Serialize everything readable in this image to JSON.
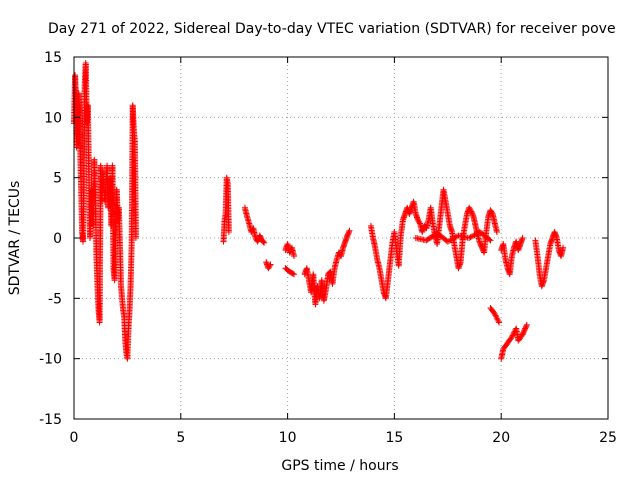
{
  "chart_data": {
    "type": "scatter",
    "title": "Day 271 of 2022, Sidereal Day-to-day VTEC variation (SDTVAR) for receiver pove",
    "xlabel": "GPS time / hours",
    "ylabel": "SDTVAR / TECUs",
    "xlim": [
      0,
      25
    ],
    "ylim": [
      -15,
      15
    ],
    "x_ticks": [
      "0",
      "5",
      "10",
      "15",
      "20",
      "25"
    ],
    "y_ticks": [
      "-15",
      "-10",
      "-5",
      "0",
      "5",
      "10",
      "15"
    ],
    "grid": true,
    "marker": "+",
    "colors": {
      "series": "#ff0000",
      "grid": "#a0a0a0",
      "axes": "#000000"
    },
    "series": [
      {
        "name": "SDTVAR",
        "segments": [
          [
            [
              0.0,
              9.5
            ],
            [
              0.05,
              13.5
            ],
            [
              0.1,
              11.5
            ],
            [
              0.12,
              7.5
            ],
            [
              0.18,
              9.0
            ],
            [
              0.22,
              12.0
            ],
            [
              0.28,
              10.0
            ],
            [
              0.3,
              6.5
            ],
            [
              0.35,
              3.0
            ],
            [
              0.38,
              0.5
            ],
            [
              0.42,
              -0.3
            ],
            [
              0.45,
              3.0
            ],
            [
              0.48,
              8.5
            ],
            [
              0.5,
              12.5
            ],
            [
              0.55,
              14.5
            ],
            [
              0.6,
              9.5
            ],
            [
              0.65,
              11.0
            ],
            [
              0.7,
              5.0
            ],
            [
              0.75,
              0.0
            ],
            [
              0.8,
              2.5
            ],
            [
              0.85,
              4.0
            ],
            [
              0.9,
              1.0
            ],
            [
              0.95,
              6.5
            ],
            [
              1.0,
              3.5
            ],
            [
              1.05,
              -1.5
            ],
            [
              1.1,
              -4.0
            ],
            [
              1.15,
              -6.0
            ],
            [
              1.2,
              -7.0
            ],
            [
              1.25,
              6.0
            ],
            [
              1.3,
              3.0
            ],
            [
              1.35,
              5.5
            ],
            [
              1.45,
              3.0
            ],
            [
              1.55,
              6.0
            ],
            [
              1.6,
              2.5
            ],
            [
              1.7,
              5.0
            ],
            [
              1.75,
              1.0
            ],
            [
              1.8,
              6.0
            ],
            [
              1.85,
              -2.5
            ],
            [
              1.9,
              -3.5
            ],
            [
              2.0,
              4.0
            ],
            [
              2.05,
              1.5
            ],
            [
              2.1,
              2.5
            ],
            [
              2.15,
              -0.5
            ],
            [
              2.2,
              -4.0
            ],
            [
              2.25,
              -5.0
            ],
            [
              2.3,
              -6.0
            ],
            [
              2.35,
              -6.5
            ],
            [
              2.4,
              -8.5
            ],
            [
              2.45,
              -9.5
            ],
            [
              2.5,
              -10.0
            ],
            [
              2.55,
              -7.5
            ],
            [
              2.6,
              -6.0
            ],
            [
              2.65,
              -4.0
            ],
            [
              2.7,
              -0.5
            ],
            [
              2.75,
              11.0
            ],
            [
              2.8,
              9.0
            ],
            [
              2.85,
              8.0
            ],
            [
              2.9,
              0.0
            ]
          ],
          [
            [
              7.0,
              -0.3
            ],
            [
              7.05,
              1.5
            ],
            [
              7.1,
              2.0
            ],
            [
              7.15,
              5.0
            ],
            [
              7.2,
              4.5
            ],
            [
              7.25,
              0.5
            ]
          ],
          [
            [
              8.0,
              2.5
            ],
            [
              8.1,
              1.8
            ],
            [
              8.2,
              1.2
            ],
            [
              8.3,
              0.5
            ],
            [
              8.4,
              0.8
            ],
            [
              8.5,
              0.0
            ],
            [
              8.6,
              -0.3
            ],
            [
              8.7,
              0.2
            ],
            [
              8.8,
              -0.2
            ],
            [
              8.9,
              -0.4
            ]
          ],
          [
            [
              9.0,
              -2.0
            ],
            [
              9.1,
              -2.5
            ],
            [
              9.2,
              -2.2
            ]
          ],
          [
            [
              9.9,
              -1.0
            ],
            [
              10.0,
              -0.5
            ],
            [
              10.1,
              -1.2
            ],
            [
              10.2,
              -0.8
            ],
            [
              10.3,
              -1.5
            ]
          ],
          [
            [
              9.9,
              -2.5
            ],
            [
              10.1,
              -2.8
            ],
            [
              10.3,
              -3.0
            ]
          ],
          [
            [
              10.8,
              -3.0
            ],
            [
              10.9,
              -2.5
            ],
            [
              11.0,
              -3.5
            ],
            [
              11.1,
              -4.5
            ],
            [
              11.2,
              -3.0
            ],
            [
              11.3,
              -5.5
            ],
            [
              11.4,
              -4.0
            ],
            [
              11.5,
              -5.0
            ],
            [
              11.6,
              -3.5
            ],
            [
              11.7,
              -5.2
            ],
            [
              11.8,
              -4.2
            ],
            [
              11.9,
              -3.0
            ],
            [
              12.0,
              -2.8
            ],
            [
              12.1,
              -3.8
            ],
            [
              12.2,
              -2.5
            ],
            [
              12.3,
              -1.8
            ],
            [
              12.4,
              -1.2
            ],
            [
              12.5,
              -1.5
            ],
            [
              12.6,
              -0.8
            ],
            [
              12.7,
              -0.3
            ],
            [
              12.8,
              0.2
            ],
            [
              12.9,
              0.6
            ]
          ],
          [
            [
              13.9,
              1.0
            ],
            [
              14.0,
              0.0
            ],
            [
              14.1,
              -0.8
            ],
            [
              14.2,
              -1.8
            ],
            [
              14.3,
              -2.5
            ],
            [
              14.4,
              -3.5
            ],
            [
              14.5,
              -4.5
            ],
            [
              14.6,
              -5.0
            ],
            [
              14.7,
              -3.5
            ],
            [
              14.8,
              -2.0
            ],
            [
              14.9,
              -0.5
            ],
            [
              15.0,
              0.5
            ],
            [
              15.1,
              -1.0
            ],
            [
              15.2,
              -2.3
            ],
            [
              15.3,
              0.2
            ],
            [
              15.4,
              1.5
            ],
            [
              15.5,
              2.0
            ],
            [
              15.6,
              2.5
            ],
            [
              15.7,
              2.0
            ],
            [
              15.8,
              2.5
            ],
            [
              15.9,
              3.0
            ],
            [
              16.0,
              2.0
            ],
            [
              16.1,
              1.5
            ],
            [
              16.2,
              1.2
            ],
            [
              16.3,
              0.5
            ],
            [
              16.4,
              1.0
            ],
            [
              16.5,
              0.8
            ],
            [
              16.6,
              1.5
            ],
            [
              16.7,
              2.5
            ],
            [
              16.8,
              1.2
            ],
            [
              16.9,
              0.2
            ],
            [
              17.0,
              -0.5
            ],
            [
              17.1,
              1.0
            ],
            [
              17.2,
              2.5
            ],
            [
              17.3,
              4.0
            ],
            [
              17.4,
              3.0
            ],
            [
              17.5,
              2.0
            ],
            [
              17.6,
              1.0
            ],
            [
              17.7,
              0.5
            ],
            [
              17.8,
              -0.5
            ],
            [
              17.9,
              -1.5
            ],
            [
              18.0,
              -2.5
            ],
            [
              18.1,
              -2.0
            ],
            [
              18.2,
              0.0
            ],
            [
              18.3,
              1.0
            ],
            [
              18.4,
              2.0
            ],
            [
              18.5,
              2.5
            ],
            [
              18.6,
              2.2
            ],
            [
              18.7,
              1.8
            ],
            [
              18.8,
              1.0
            ],
            [
              18.9,
              0.2
            ],
            [
              19.0,
              -0.4
            ],
            [
              19.1,
              -0.8
            ],
            [
              19.2,
              -1.2
            ],
            [
              19.3,
              0.5
            ],
            [
              19.4,
              1.8
            ],
            [
              19.5,
              2.3
            ],
            [
              19.6,
              2.0
            ],
            [
              19.7,
              1.2
            ],
            [
              19.8,
              0.5
            ]
          ],
          [
            [
              16.0,
              0.0
            ],
            [
              16.5,
              -0.2
            ],
            [
              17.0,
              0.4
            ],
            [
              17.5,
              -0.3
            ],
            [
              18.0,
              0.2
            ],
            [
              18.5,
              0.0
            ],
            [
              19.0,
              0.5
            ],
            [
              19.5,
              -0.2
            ]
          ],
          [
            [
              19.5,
              -5.8
            ],
            [
              19.7,
              -6.3
            ],
            [
              19.9,
              -7.0
            ]
          ],
          [
            [
              20.0,
              -1.0
            ],
            [
              20.1,
              -0.5
            ],
            [
              20.2,
              -1.8
            ],
            [
              20.3,
              -2.5
            ],
            [
              20.4,
              -3.0
            ],
            [
              20.5,
              -1.5
            ],
            [
              20.6,
              -0.8
            ],
            [
              20.7,
              -0.3
            ],
            [
              20.8,
              -1.0
            ],
            [
              20.9,
              -0.5
            ],
            [
              21.0,
              0.0
            ]
          ],
          [
            [
              20.0,
              -10.0
            ],
            [
              20.1,
              -9.2
            ],
            [
              20.3,
              -8.7
            ],
            [
              20.5,
              -8.2
            ],
            [
              20.7,
              -7.5
            ],
            [
              20.8,
              -8.5
            ],
            [
              21.0,
              -8.0
            ],
            [
              21.1,
              -7.6
            ],
            [
              21.2,
              -7.2
            ]
          ],
          [
            [
              21.6,
              -0.2
            ],
            [
              21.7,
              -1.5
            ],
            [
              21.8,
              -3.0
            ],
            [
              21.9,
              -4.0
            ],
            [
              22.0,
              -3.5
            ],
            [
              22.1,
              -2.5
            ],
            [
              22.2,
              -1.5
            ],
            [
              22.3,
              -0.5
            ],
            [
              22.4,
              0.0
            ],
            [
              22.5,
              0.5
            ],
            [
              22.6,
              0.0
            ],
            [
              22.7,
              -1.0
            ],
            [
              22.8,
              -1.5
            ],
            [
              22.9,
              -0.8
            ]
          ]
        ]
      }
    ]
  }
}
